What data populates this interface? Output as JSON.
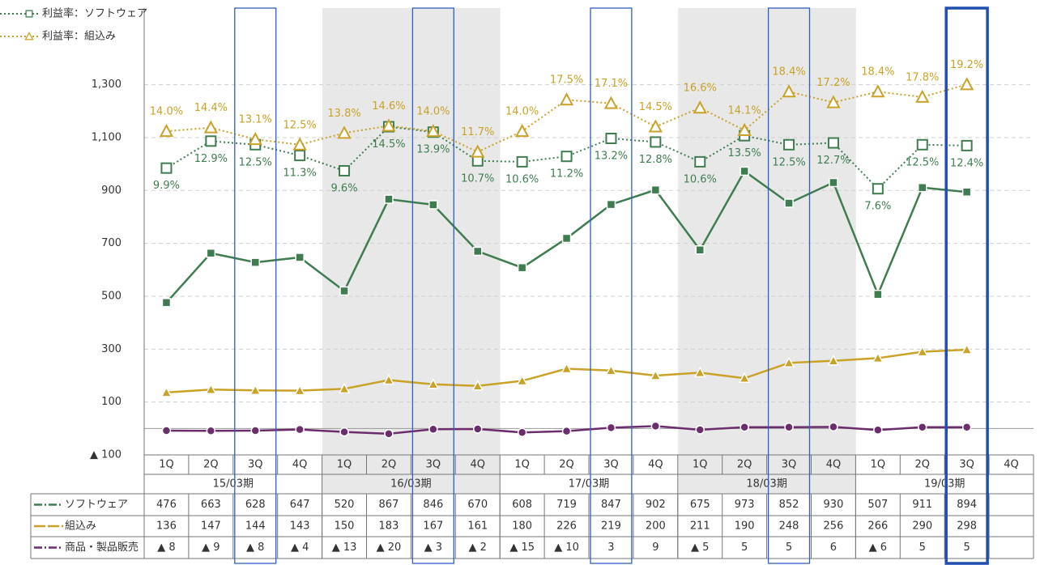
{
  "chart_data": {
    "type": "line",
    "categories": [
      "1Q",
      "2Q",
      "3Q",
      "4Q",
      "1Q",
      "2Q",
      "3Q",
      "4Q",
      "1Q",
      "2Q",
      "3Q",
      "4Q",
      "1Q",
      "2Q",
      "3Q",
      "4Q",
      "1Q",
      "2Q",
      "3Q",
      "4Q"
    ],
    "groups": [
      "15/03期",
      "16/03期",
      "17/03期",
      "18/03期",
      "19/03期"
    ],
    "ylim": [
      -100,
      1600
    ],
    "yticks": [
      {
        "value": -100,
        "label": "▲ 100"
      },
      100,
      300,
      500,
      700,
      900,
      {
        "value": 1100,
        "label": "1,100"
      },
      {
        "value": 1300,
        "label": "1,300"
      }
    ],
    "y2lim": [
      -22,
      28
    ],
    "grid": true,
    "legend": "top-left",
    "series": [
      {
        "name": "ソフトウェア",
        "color": "#3f7d50",
        "values": [
          476,
          663,
          628,
          647,
          520,
          867,
          846,
          670,
          608,
          719,
          847,
          902,
          675,
          973,
          852,
          930,
          507,
          911,
          894,
          null
        ]
      },
      {
        "name": "組込み",
        "color": "#c9a227",
        "values": [
          136,
          147,
          144,
          143,
          150,
          183,
          167,
          161,
          180,
          226,
          219,
          200,
          211,
          190,
          248,
          256,
          266,
          290,
          298,
          null
        ]
      },
      {
        "name": "商品・製品販売",
        "color": "#6b2d6b",
        "values": [
          -8,
          -9,
          -8,
          -4,
          -13,
          -20,
          -3,
          -2,
          -15,
          -10,
          3,
          9,
          -5,
          5,
          5,
          6,
          -6,
          5,
          5,
          null
        ],
        "value_labels": [
          "▲ 8",
          "▲ 9",
          "▲ 8",
          "▲ 4",
          "▲ 13",
          "▲ 20",
          "▲ 3",
          "▲ 2",
          "▲ 15",
          "▲ 10",
          "3",
          "9",
          "▲ 5",
          "5",
          "5",
          "6",
          "▲ 6",
          "5",
          "5",
          null
        ]
      },
      {
        "name": "利益率：ソフトウェア",
        "color": "#3f7d50",
        "axis": "y2",
        "values": [
          9.9,
          12.9,
          12.5,
          11.3,
          9.6,
          14.5,
          13.9,
          10.7,
          10.6,
          11.2,
          13.2,
          12.8,
          10.6,
          13.5,
          12.5,
          12.7,
          7.6,
          12.5,
          12.4,
          null
        ],
        "value_labels": [
          "9.9%",
          "12.9%",
          "12.5%",
          "11.3%",
          "9.6%",
          "14.5%",
          "13.9%",
          "10.7%",
          "10.6%",
          "11.2%",
          "13.2%",
          "12.8%",
          "10.6%",
          "13.5%",
          "12.5%",
          "12.7%",
          "7.6%",
          "12.5%",
          "12.4%",
          null
        ]
      },
      {
        "name": "利益率：組込み",
        "color": "#c9a227",
        "axis": "y2",
        "values": [
          14.0,
          14.4,
          13.1,
          12.5,
          13.8,
          14.6,
          14.0,
          11.7,
          14.0,
          17.5,
          17.1,
          14.5,
          16.6,
          14.1,
          18.4,
          17.2,
          18.4,
          17.8,
          19.2,
          null
        ],
        "value_labels": [
          "14.0%",
          "14.4%",
          "13.1%",
          "12.5%",
          "13.8%",
          "14.6%",
          "14.0%",
          "11.7%",
          "14.0%",
          "17.5%",
          "17.1%",
          "14.5%",
          "16.6%",
          "14.1%",
          "18.4%",
          "17.2%",
          "18.4%",
          "17.8%",
          "19.2%",
          null
        ]
      }
    ]
  }
}
